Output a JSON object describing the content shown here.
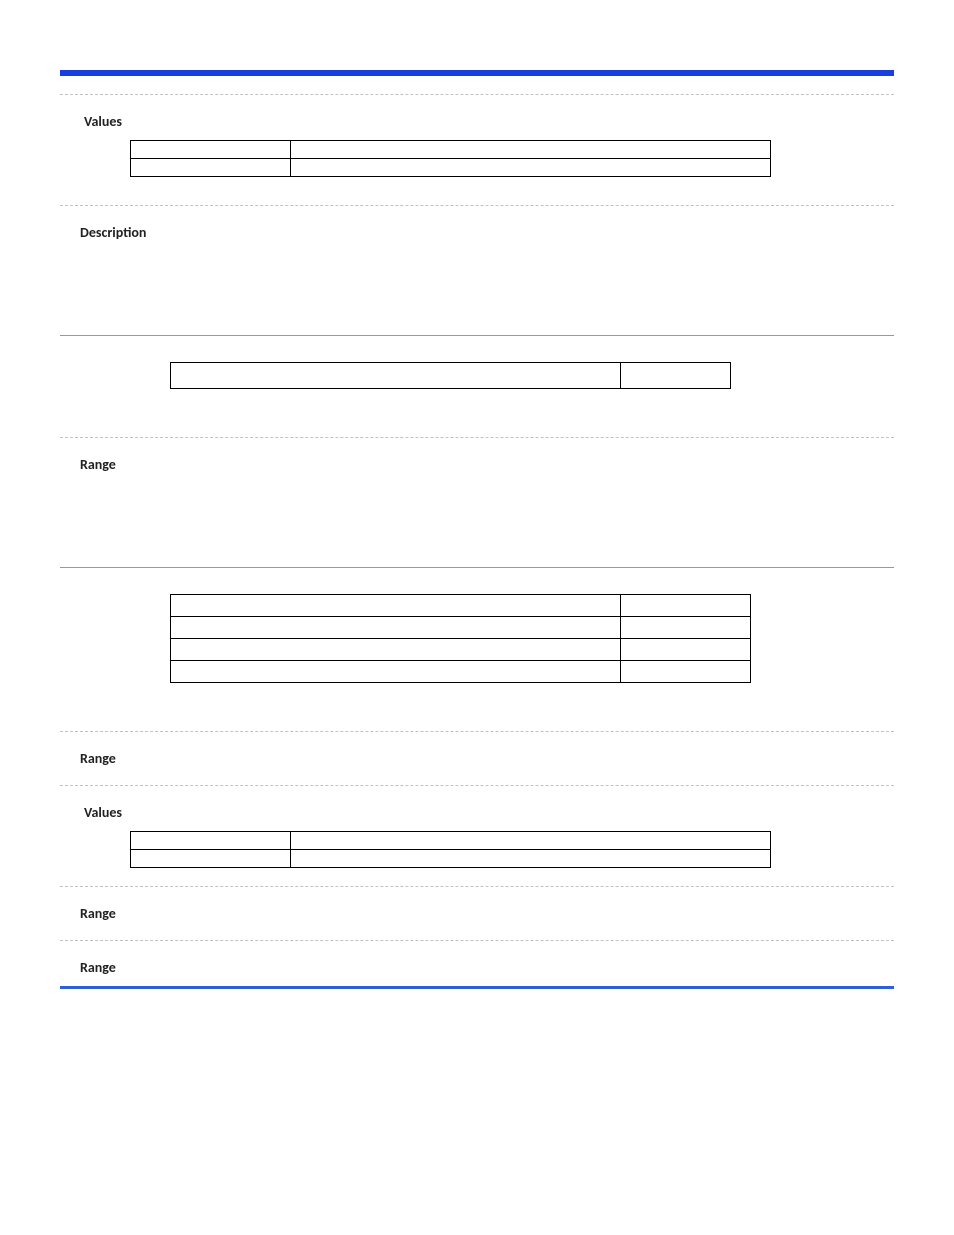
{
  "labels": {
    "values1": "Values",
    "description": "Description",
    "range1": "Range",
    "range2": "Range",
    "values2": "Values",
    "range3": "Range",
    "range4": "Range"
  },
  "values_table_1": {
    "rows": [
      {
        "c1": "",
        "c2": ""
      },
      {
        "c1": "",
        "c2": ""
      }
    ]
  },
  "single_row": {
    "c1": "",
    "c2": ""
  },
  "four_rows": {
    "rows": [
      {
        "c1": "",
        "c2": ""
      },
      {
        "c1": "",
        "c2": ""
      },
      {
        "c1": "",
        "c2": ""
      },
      {
        "c1": "",
        "c2": ""
      }
    ]
  },
  "values_table_2": {
    "rows": [
      {
        "c1": "",
        "c2": ""
      },
      {
        "c1": "",
        "c2": ""
      }
    ]
  },
  "colors": {
    "top_bar": "#1a3fe0",
    "bottom_bar": "#2f5fd6",
    "dash": "#c2c2c2",
    "border": "#000000",
    "text": "#222222"
  }
}
